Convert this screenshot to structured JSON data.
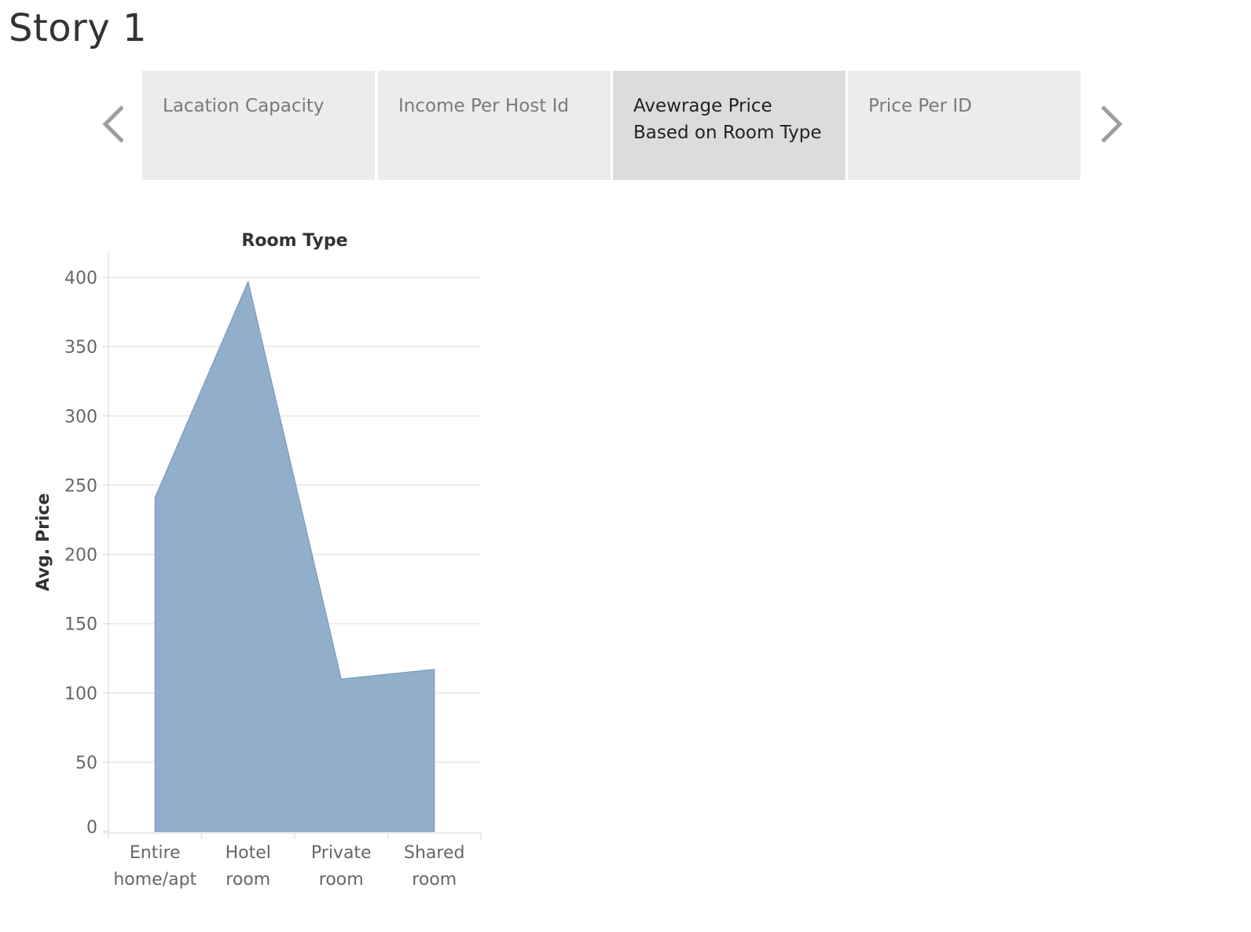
{
  "story": {
    "title": "Story 1"
  },
  "navigator": {
    "prev_icon": "chevron-left-icon",
    "next_icon": "chevron-right-icon",
    "active_index": 2,
    "points": [
      {
        "label": "Lacation Capacity"
      },
      {
        "label": "Income Per Host Id"
      },
      {
        "label": "Avewrage Price\nBased on Room Type"
      },
      {
        "label": "Price Per ID"
      }
    ]
  },
  "colors": {
    "area_fill": "#91aecb",
    "area_stroke": "#7a9cc0",
    "gridline": "#e8e8e8",
    "tab_bg": "#ececec",
    "tab_active_bg": "#dcdcdc",
    "arrow": "#9e9e9e"
  },
  "chart_data": {
    "type": "area",
    "title": "",
    "xlabel": "Room Type",
    "ylabel": "Avg. Price",
    "categories": [
      "Entire\nhome/apt",
      "Hotel\nroom",
      "Private\nroom",
      "Shared\nroom"
    ],
    "values": [
      241,
      397,
      110,
      117
    ],
    "ylim": [
      0,
      400
    ],
    "yticks": [
      0,
      50,
      100,
      150,
      200,
      250,
      300,
      350,
      400
    ],
    "grid": true
  }
}
